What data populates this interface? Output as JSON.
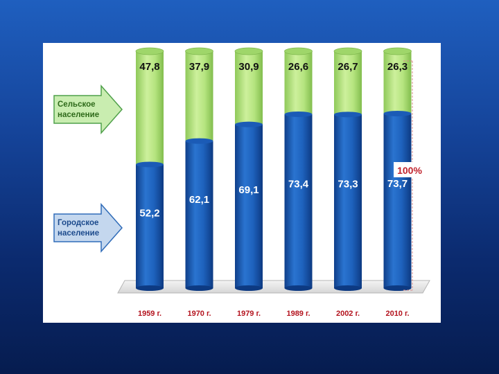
{
  "colors": {
    "urban": "#1a5cb8",
    "rural": "#b8e67f",
    "year_label": "#b3121d",
    "total_label": "#c0212b",
    "rural_arrow": "#c9edb0",
    "urban_arrow": "#c4d7ee"
  },
  "arrows": {
    "rural": {
      "line1": "Сельское",
      "line2": "население"
    },
    "urban": {
      "line1": "Городское",
      "line2": "население"
    }
  },
  "total_label": "100%",
  "chart_data": {
    "type": "bar",
    "stacked": true,
    "categories": [
      "1959 г.",
      "1970 г.",
      "1979 г.",
      "1989 г.",
      "2002 г.",
      "2010 г."
    ],
    "series": [
      {
        "name": "Городское население",
        "values": [
          52.2,
          62.1,
          69.1,
          73.4,
          73.3,
          73.7
        ],
        "labels": [
          "52,2",
          "62,1",
          "69,1",
          "73,4",
          "73,3",
          "73,7"
        ]
      },
      {
        "name": "Сельское население",
        "values": [
          47.8,
          37.9,
          30.9,
          26.6,
          26.7,
          26.3
        ],
        "labels": [
          "47,8",
          "37,9",
          "30,9",
          "26,6",
          "26,7",
          "26,3"
        ]
      }
    ],
    "ylim": [
      0,
      100
    ],
    "grid": false,
    "title": "",
    "xlabel": "",
    "ylabel": ""
  }
}
